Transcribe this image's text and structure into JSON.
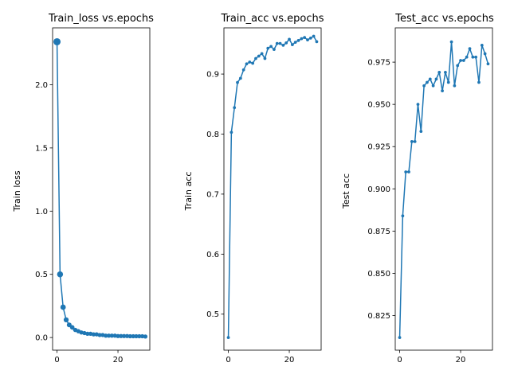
{
  "chart_data": [
    {
      "type": "line",
      "title": "Train_loss vs.epochs",
      "xlabel": "",
      "ylabel": "Train loss",
      "xlim": [
        -1.45,
        30.45
      ],
      "ylim": [
        -0.1,
        2.45
      ],
      "xticks": [
        0,
        20
      ],
      "xtick_labels": [
        "0",
        "20"
      ],
      "yticks": [
        0.0,
        0.5,
        1.0,
        1.5,
        2.0
      ],
      "ytick_labels": [
        "0.0",
        "0.5",
        "1.0",
        "1.5",
        "2.0"
      ],
      "color": "#1f77b4",
      "grid": false,
      "x": [
        0,
        1,
        2,
        3,
        4,
        5,
        6,
        7,
        8,
        9,
        10,
        11,
        12,
        13,
        14,
        15,
        16,
        17,
        18,
        19,
        20,
        21,
        22,
        23,
        24,
        25,
        26,
        27,
        28,
        29
      ],
      "y": [
        2.34,
        0.5,
        0.24,
        0.14,
        0.1,
        0.08,
        0.06,
        0.05,
        0.04,
        0.035,
        0.03,
        0.03,
        0.025,
        0.025,
        0.02,
        0.02,
        0.015,
        0.015,
        0.015,
        0.015,
        0.012,
        0.012,
        0.012,
        0.012,
        0.01,
        0.01,
        0.01,
        0.01,
        0.01,
        0.008
      ],
      "marker_size": [
        6,
        5,
        4.5,
        4.2,
        4,
        3.8,
        3.7,
        3.6,
        3.5,
        3.5,
        3.5,
        3.5,
        3.5,
        3.5,
        3.5,
        3.5,
        3.5,
        3.5,
        3.5,
        3.5,
        3.5,
        3.5,
        3.5,
        3.5,
        3.5,
        3.5,
        3.5,
        3.5,
        3.5,
        3.5
      ]
    },
    {
      "type": "line",
      "title": "Train_acc vs.epochs",
      "xlabel": "",
      "ylabel": "Train acc",
      "xlim": [
        -1.45,
        30.45
      ],
      "ylim": [
        0.44,
        0.977
      ],
      "xticks": [
        0,
        20
      ],
      "xtick_labels": [
        "0",
        "20"
      ],
      "yticks": [
        0.5,
        0.6,
        0.7,
        0.8,
        0.9
      ],
      "ytick_labels": [
        "0.5",
        "0.6",
        "0.7",
        "0.8",
        "0.9"
      ],
      "color": "#1f77b4",
      "grid": false,
      "x": [
        0,
        1,
        2,
        3,
        4,
        5,
        6,
        7,
        8,
        9,
        10,
        11,
        12,
        13,
        14,
        15,
        16,
        17,
        18,
        19,
        20,
        21,
        22,
        23,
        24,
        25,
        26,
        27,
        28,
        29
      ],
      "y": [
        0.461,
        0.803,
        0.844,
        0.886,
        0.893,
        0.907,
        0.917,
        0.92,
        0.918,
        0.926,
        0.93,
        0.934,
        0.926,
        0.943,
        0.946,
        0.941,
        0.951,
        0.951,
        0.948,
        0.952,
        0.958,
        0.949,
        0.953,
        0.956,
        0.959,
        0.961,
        0.957,
        0.96,
        0.963,
        0.954
      ],
      "marker_size": [
        2.5,
        2.5,
        2.5,
        2.5,
        2.5,
        2.5,
        2.5,
        2.5,
        2.5,
        2.5,
        2.5,
        2.5,
        2.5,
        2.5,
        2.5,
        2.5,
        2.5,
        2.5,
        2.5,
        2.5,
        2.5,
        2.5,
        2.5,
        2.5,
        2.5,
        2.5,
        2.5,
        2.5,
        2.5,
        2.5
      ]
    },
    {
      "type": "line",
      "title": "Test_acc vs.epochs",
      "xlabel": "",
      "ylabel": "Test acc",
      "xlim": [
        -1.45,
        30.45
      ],
      "ylim": [
        0.8045,
        0.9953
      ],
      "xticks": [
        0,
        20
      ],
      "xtick_labels": [
        "0",
        "20"
      ],
      "yticks": [
        0.825,
        0.85,
        0.875,
        0.9,
        0.925,
        0.95,
        0.975
      ],
      "ytick_labels": [
        "0.825",
        "0.850",
        "0.875",
        "0.900",
        "0.925",
        "0.950",
        "0.975"
      ],
      "color": "#1f77b4",
      "grid": false,
      "x": [
        0,
        1,
        2,
        3,
        4,
        5,
        6,
        7,
        8,
        9,
        10,
        11,
        12,
        13,
        14,
        15,
        16,
        17,
        18,
        19,
        20,
        21,
        22,
        23,
        24,
        25,
        26,
        27,
        28,
        29
      ],
      "y": [
        0.812,
        0.884,
        0.91,
        0.91,
        0.928,
        0.928,
        0.95,
        0.934,
        0.961,
        0.963,
        0.965,
        0.961,
        0.965,
        0.969,
        0.958,
        0.969,
        0.963,
        0.987,
        0.961,
        0.973,
        0.976,
        0.976,
        0.978,
        0.983,
        0.978,
        0.978,
        0.963,
        0.985,
        0.98,
        0.974
      ],
      "marker_size": [
        2.5,
        2.5,
        2.5,
        2.5,
        2.5,
        2.5,
        2.5,
        2.5,
        2.5,
        2.5,
        2.5,
        2.5,
        2.5,
        2.5,
        2.5,
        2.5,
        2.5,
        2.5,
        2.5,
        2.5,
        2.5,
        2.5,
        2.5,
        2.5,
        2.5,
        2.5,
        2.5,
        2.5,
        2.5,
        2.5
      ]
    }
  ]
}
